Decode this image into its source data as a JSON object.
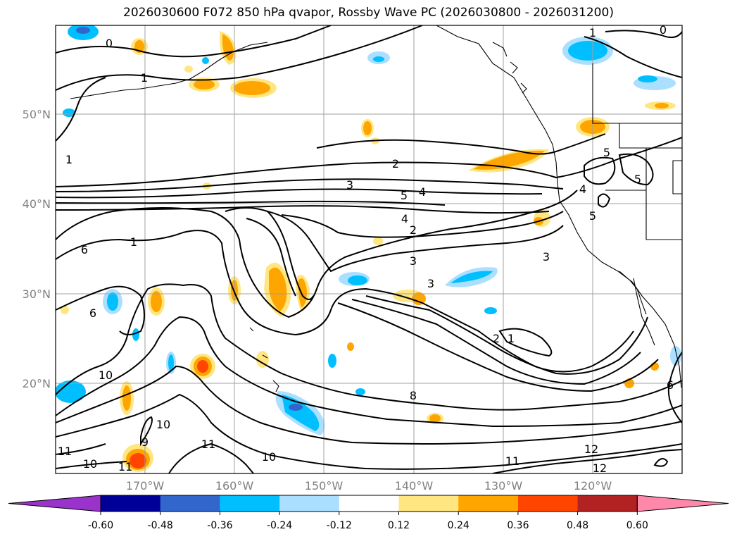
{
  "title": "2026030600 F072 850 hPa qvapor, Rossby Wave PC (2026030800 - 2026031200)",
  "map": {
    "lat_labels": [
      "50°N",
      "40°N",
      "30°N",
      "20°N"
    ],
    "lon_labels": [
      "170°W",
      "160°W",
      "150°W",
      "140°W",
      "130°W",
      "120°W"
    ]
  },
  "contour_labels": [
    "0",
    "0",
    "1",
    "1",
    "1",
    "1",
    "1",
    "2",
    "2",
    "2",
    "3",
    "3",
    "3",
    "3",
    "4",
    "4",
    "4",
    "5",
    "5",
    "5",
    "5",
    "6",
    "6",
    "6",
    "8",
    "9",
    "10",
    "10",
    "10",
    "10",
    "11",
    "11",
    "11",
    "11",
    "12",
    "12"
  ],
  "colorbar": {
    "ticks": [
      "-0.60",
      "-0.48",
      "-0.36",
      "-0.24",
      "-0.12",
      "0.12",
      "0.24",
      "0.36",
      "0.48",
      "0.60"
    ],
    "colors": [
      "#9933cc",
      "#000099",
      "#3366cc",
      "#00bfff",
      "#aadfff",
      "#ffffff",
      "#ffe680",
      "#ffa500",
      "#ff4500",
      "#b22222",
      "#ff88aa"
    ]
  }
}
